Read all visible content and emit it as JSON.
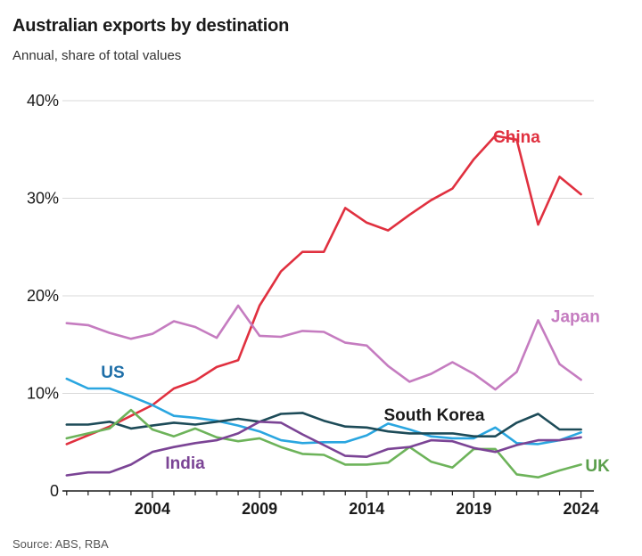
{
  "header": {
    "title": "Australian exports by destination",
    "subtitle": "Annual, share of total values",
    "source": "Source: ABS, RBA"
  },
  "chart_data": {
    "type": "line",
    "title": "Australian exports by destination",
    "subtitle": "Annual, share of total values",
    "xlabel": "",
    "ylabel": "",
    "x": [
      2000,
      2001,
      2002,
      2003,
      2004,
      2005,
      2006,
      2007,
      2008,
      2009,
      2010,
      2011,
      2012,
      2013,
      2014,
      2015,
      2016,
      2017,
      2018,
      2019,
      2020,
      2021,
      2022,
      2023,
      2024
    ],
    "xlim": [
      1999.8,
      2024.6
    ],
    "ylim": [
      0,
      40
    ],
    "xticks": [
      "2004",
      "2009",
      "2014",
      "2019",
      "2024"
    ],
    "yticks": [
      "0",
      "10%",
      "20%",
      "30%",
      "40%"
    ],
    "grid": true,
    "series": [
      {
        "name": "China",
        "color": "#e0303f",
        "values": [
          4.8,
          5.7,
          6.6,
          7.7,
          8.8,
          10.5,
          11.3,
          12.7,
          13.4,
          19.0,
          22.5,
          24.5,
          24.5,
          29.0,
          27.5,
          26.7,
          28.3,
          29.8,
          31.0,
          34.0,
          36.4,
          36.0,
          27.3,
          32.2,
          30.4
        ]
      },
      {
        "name": "Japan",
        "color": "#c57cc0",
        "values": [
          17.2,
          17.0,
          16.2,
          15.6,
          16.1,
          17.4,
          16.8,
          15.7,
          19.0,
          15.9,
          15.8,
          16.4,
          16.3,
          15.2,
          14.9,
          12.8,
          11.2,
          12.0,
          13.2,
          12.0,
          10.4,
          12.2,
          17.5,
          13.0,
          11.4
        ]
      },
      {
        "name": "US",
        "color": "#2aa6e0",
        "values": [
          11.5,
          10.5,
          10.5,
          9.7,
          8.8,
          7.7,
          7.5,
          7.2,
          6.7,
          6.1,
          5.2,
          4.9,
          5.0,
          5.0,
          5.7,
          6.9,
          6.3,
          5.6,
          5.4,
          5.4,
          6.5,
          4.9,
          4.8,
          5.2,
          6.0
        ]
      },
      {
        "name": "South Korea",
        "color": "#1d4b58",
        "values": [
          6.8,
          6.8,
          7.1,
          6.4,
          6.7,
          7.0,
          6.8,
          7.1,
          7.4,
          7.1,
          7.9,
          8.0,
          7.2,
          6.6,
          6.5,
          6.1,
          5.9,
          5.9,
          5.9,
          5.6,
          5.6,
          7.0,
          7.9,
          6.3,
          6.3
        ]
      },
      {
        "name": "UK",
        "color": "#6db35a",
        "values": [
          5.4,
          5.9,
          6.4,
          8.3,
          6.3,
          5.6,
          6.4,
          5.5,
          5.1,
          5.4,
          4.5,
          3.8,
          3.7,
          2.7,
          2.7,
          2.9,
          4.5,
          3.0,
          2.4,
          4.3,
          4.3,
          1.7,
          1.4,
          2.1,
          2.7
        ]
      },
      {
        "name": "India",
        "color": "#7b4495",
        "values": [
          1.6,
          1.9,
          1.9,
          2.7,
          4.0,
          4.5,
          4.9,
          5.2,
          5.9,
          7.1,
          7.0,
          5.8,
          4.7,
          3.6,
          3.5,
          4.3,
          4.5,
          5.2,
          5.1,
          4.4,
          4.0,
          4.7,
          5.2,
          5.2,
          5.5
        ]
      }
    ],
    "labels": [
      {
        "series": "China",
        "text": "China",
        "year": 2019.9,
        "value": 35.7,
        "color": "#e0303f"
      },
      {
        "series": "Japan",
        "text": "Japan",
        "year": 2022.6,
        "value": 17.3,
        "color": "#c57cc0"
      },
      {
        "series": "US",
        "text": "US",
        "year": 2001.6,
        "value": 11.6,
        "color": "#1f6fa8"
      },
      {
        "series": "South Korea",
        "text": "South Korea",
        "year": 2014.8,
        "value": 7.2,
        "color": "#1a1a1a"
      },
      {
        "series": "UK",
        "text": "UK",
        "year": 2024.2,
        "value": 2.0,
        "color": "#5a9e4b"
      },
      {
        "series": "India",
        "text": "India",
        "year": 2004.6,
        "value": 2.3,
        "color": "#7b4495"
      }
    ]
  }
}
